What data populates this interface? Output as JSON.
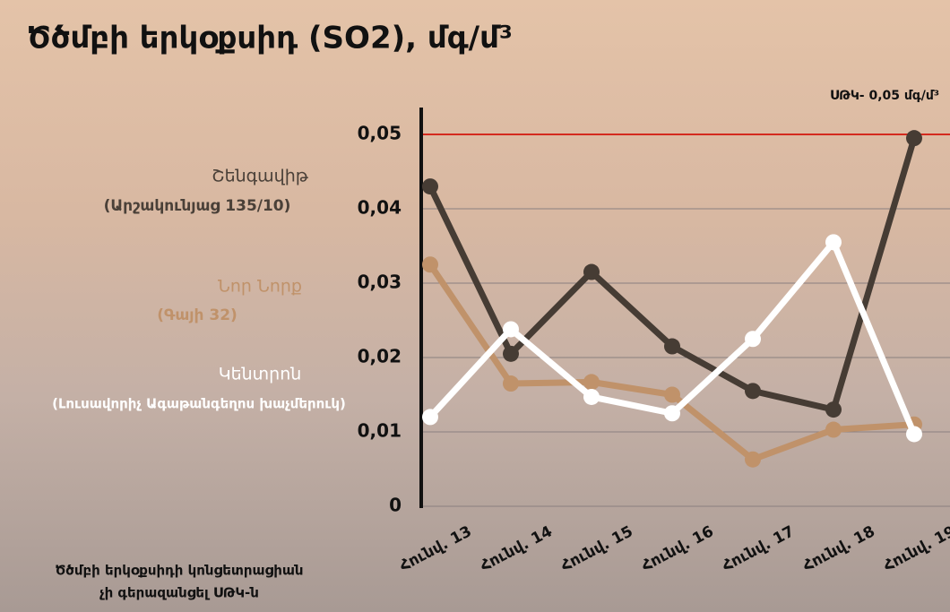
{
  "chart_data": {
    "type": "line",
    "title": "Ծծմբի երկօքսիդ (SO2), մգ/մ³",
    "categories": [
      "Հունվ. 13",
      "Հունվ. 14",
      "Հունվ. 15",
      "Հունվ. 16",
      "Հունվ. 17",
      "Հունվ. 18",
      "Հունվ. 19"
    ],
    "series": [
      {
        "name": "Շենգավիթ",
        "note": "(Արշակունյաց 135/10)",
        "color": "#463c34",
        "label_color": "#4a4038",
        "values": [
          0.043,
          0.0205,
          0.0315,
          0.0215,
          0.0155,
          0.013,
          0.0495
        ]
      },
      {
        "name": "Նոր Նորք",
        "note": "(Գայի 32)",
        "color": "#c0926a",
        "label_color": "#c0926a",
        "values": [
          0.0325,
          0.0165,
          0.0167,
          0.015,
          0.0063,
          0.0103,
          0.011
        ]
      },
      {
        "name": "Կենտրոն",
        "note": "(Լուսավորիչ Ագաթանգեղոս խաչմերուկ)",
        "color": "#ffffff",
        "label_color": "#ffffff",
        "values": [
          0.012,
          0.0238,
          0.0147,
          0.0125,
          0.0225,
          0.0355,
          0.0097
        ]
      }
    ],
    "ylim": [
      0,
      0.05
    ],
    "yticks": [
      0,
      {
        "value": 0.01,
        "label": "0,01"
      },
      {
        "value": 0.02,
        "label": "0,02"
      },
      {
        "value": 0.03,
        "label": "0,03"
      },
      {
        "value": 0.04,
        "label": "0,04"
      },
      {
        "value": 0.05,
        "label": "0,05"
      }
    ],
    "grid": true,
    "reference_line": {
      "value": 0.05,
      "color": "#d42a1e",
      "label": "ՍԹԿ- 0,05 մգ/մ³"
    },
    "footnote": [
      "Ծծմբի երկօքսիդի կոնցետրացիան",
      "չի գերազանցել ՍԹԿ-ն"
    ]
  }
}
